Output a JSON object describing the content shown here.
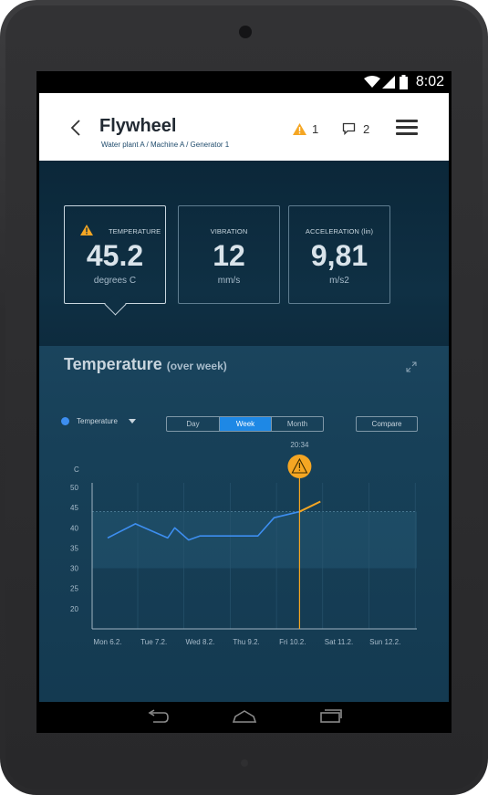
{
  "status_bar": {
    "time": "8:02"
  },
  "header": {
    "title": "Flywheel",
    "breadcrumb": "Water plant A / Machine A / Generator 1",
    "alert_count": "1",
    "comment_count": "2"
  },
  "metrics": [
    {
      "label": "TEMPERATURE",
      "value": "45.2",
      "unit": "degrees C",
      "warning": true
    },
    {
      "label": "VIBRATION",
      "value": "12",
      "unit": "mm/s",
      "warning": false
    },
    {
      "label": "ACCELERATION (lin)",
      "value": "9,81",
      "unit": "m/s2",
      "warning": false
    }
  ],
  "section": {
    "title": "Temperature",
    "subtitle": "(over week)",
    "legend_label": "Temperature",
    "ranges": [
      "Day",
      "Week",
      "Month"
    ],
    "active_range": "Week",
    "compare_label": "Compare"
  },
  "colors": {
    "accent": "#1e88e5",
    "line": "#3d8ef0",
    "warning": "#f5a623",
    "header_bg": "#ffffff"
  },
  "chart_data": {
    "type": "line",
    "ylabel": "C",
    "ylim": [
      15,
      50
    ],
    "yticks": [
      20,
      25,
      30,
      35,
      40,
      45,
      50
    ],
    "x_labels": [
      "Mon 6.2.",
      "Tue 7.2.",
      "Wed 8.2.",
      "Thu 9.2.",
      "Fri 10.2.",
      "Sat 11.2.",
      "Sun 12.2."
    ],
    "normal_band": [
      30,
      44
    ],
    "series": [
      {
        "name": "Temperature",
        "x": [
          0,
          0.6,
          1.3,
          1.45,
          1.75,
          2.0,
          3.25,
          3.6,
          4.15
        ],
        "y": [
          37.5,
          41,
          37.5,
          40,
          37,
          38,
          38,
          42.5,
          44
        ]
      }
    ],
    "forecast": {
      "x": [
        4.15,
        4.6
      ],
      "y": [
        44,
        46.5
      ]
    },
    "marker": {
      "time": "20:34",
      "x": 4.15
    }
  }
}
